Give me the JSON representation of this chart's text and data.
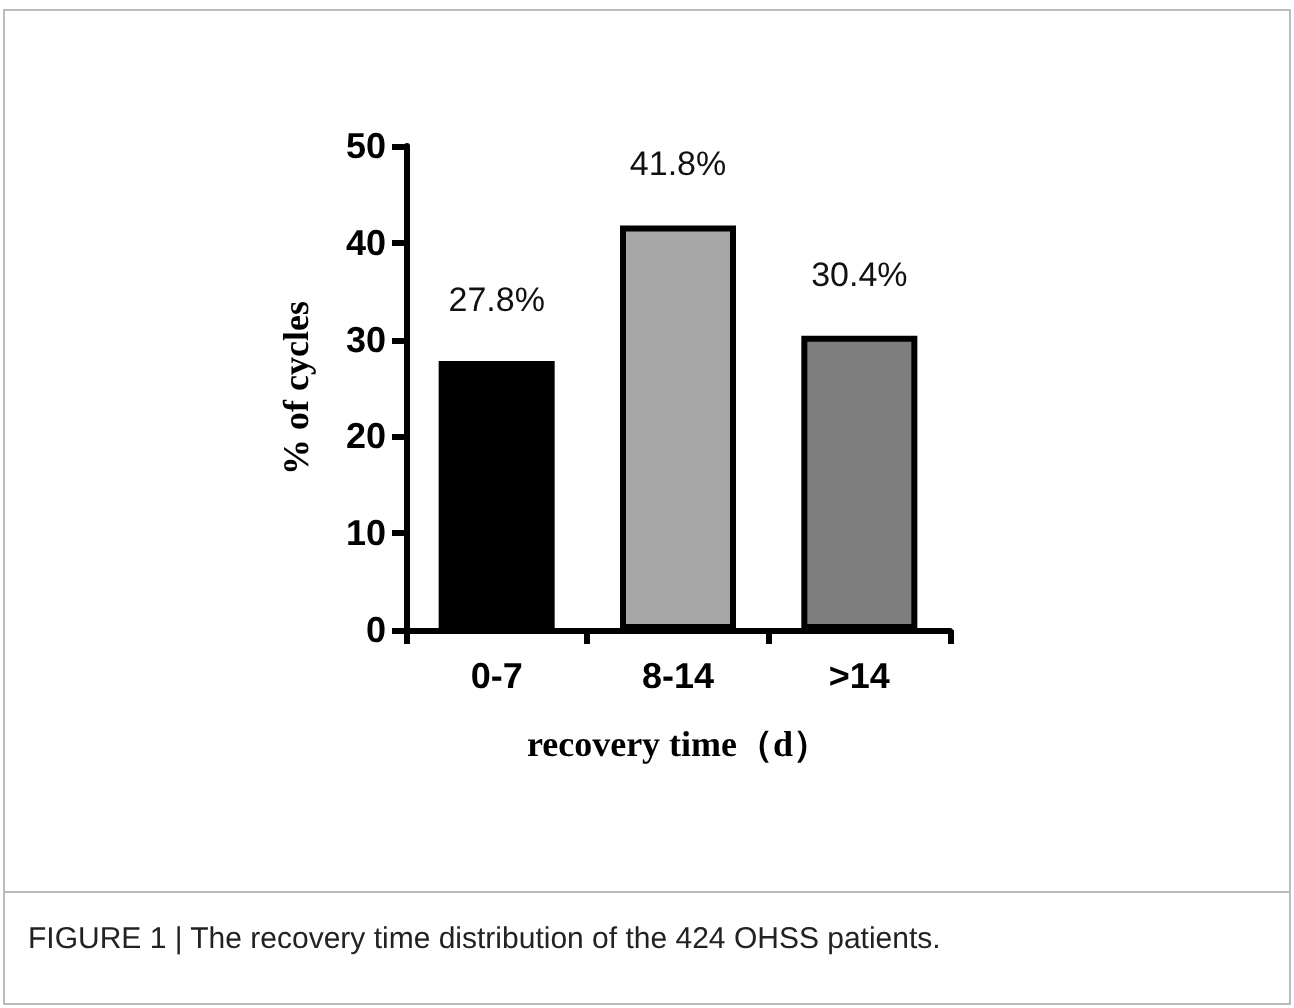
{
  "chart_data": {
    "type": "bar",
    "categories": [
      "0-7",
      "8-14",
      ">14"
    ],
    "values": [
      27.8,
      41.8,
      30.4
    ],
    "colors": [
      "#000000",
      "#a6a6a6",
      "#7f7f7f"
    ],
    "value_labels": [
      "27.8%",
      "41.8%",
      "30.4%"
    ],
    "ylim": [
      0,
      50
    ],
    "yticks": [
      0,
      10,
      20,
      30,
      40,
      50
    ],
    "ylabel": "% of cycles",
    "xlabel": "recovery time（d）",
    "annotations": [
      "FIGURE 1 | The recovery time distribution of the 424 OHSS patients."
    ],
    "grid": false
  }
}
